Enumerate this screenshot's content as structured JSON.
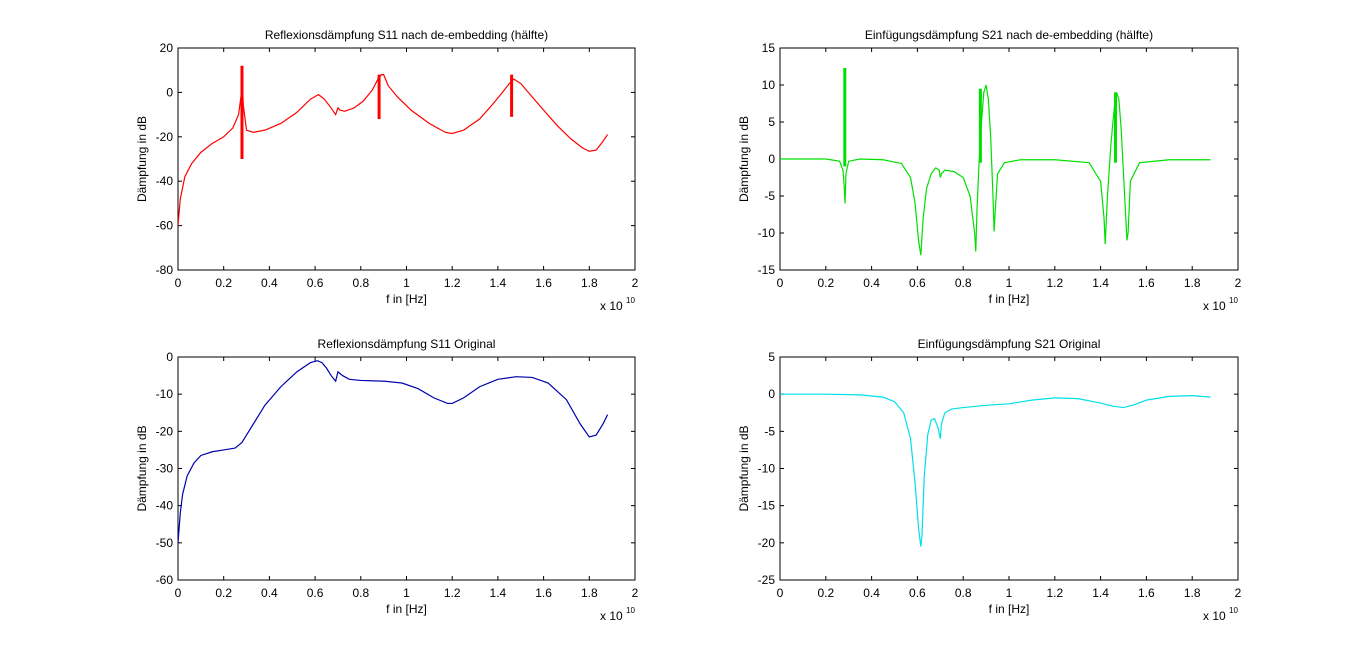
{
  "chart_data": [
    {
      "type": "line",
      "title": "Reflexionsdämpfung S11 nach de-embedding (hälfte)",
      "xlabel": "f in [Hz]",
      "ylabel": "Dämpfung in dB",
      "x_exponent_base": "x 10",
      "x_exponent_power": "10",
      "xlim": [
        0,
        2
      ],
      "ylim": [
        -80,
        20
      ],
      "xticks": [
        "0",
        "0.2",
        "0.4",
        "0.6",
        "0.8",
        "1",
        "1.2",
        "1.4",
        "1.6",
        "1.8",
        "2"
      ],
      "yticks": [
        "20",
        "0",
        "-20",
        "-40",
        "-60",
        "-80"
      ],
      "grid": false,
      "color": "#ff0000",
      "series": [
        {
          "x": [
            0.0,
            0.01,
            0.03,
            0.06,
            0.1,
            0.15,
            0.2,
            0.24,
            0.265,
            0.278,
            0.282,
            0.286,
            0.3,
            0.33,
            0.38,
            0.45,
            0.52,
            0.58,
            0.615,
            0.64,
            0.67,
            0.69,
            0.7,
            0.71,
            0.73,
            0.77,
            0.81,
            0.85,
            0.875,
            0.89,
            0.9,
            0.92,
            0.96,
            1.02,
            1.1,
            1.17,
            1.2,
            1.25,
            1.32,
            1.38,
            1.42,
            1.45,
            1.47,
            1.5,
            1.55,
            1.6,
            1.66,
            1.72,
            1.77,
            1.8,
            1.83,
            1.86,
            1.88
          ],
          "values": [
            -60,
            -48,
            -38,
            -32,
            -27,
            -23,
            -20,
            -16,
            -10,
            0,
            3,
            -6,
            -17,
            -18,
            -17,
            -14,
            -9,
            -3,
            -1,
            -3,
            -7,
            -10,
            -7,
            -8,
            -8.5,
            -7,
            -4,
            1,
            6,
            8,
            8,
            3,
            -2,
            -8,
            -14,
            -18,
            -18.5,
            -17,
            -12,
            -5,
            0,
            4,
            6,
            4,
            -2,
            -8,
            -15,
            -21,
            -25,
            -26.5,
            -26,
            -22,
            -19
          ]
        }
      ],
      "spikes": [
        {
          "x": 0.28,
          "y_top": 12,
          "y_bottom": -30
        },
        {
          "x": 0.88,
          "y_top": 8,
          "y_bottom": -12
        },
        {
          "x": 1.46,
          "y_top": 8,
          "y_bottom": -11
        }
      ]
    },
    {
      "type": "line",
      "title": "Einfügungsdämpfung S21 nach de-embedding (hälfte)",
      "xlabel": "f in [Hz]",
      "ylabel": "Dämpfung in dB",
      "x_exponent_base": "x 10",
      "x_exponent_power": "10",
      "xlim": [
        0,
        2
      ],
      "ylim": [
        -15,
        15
      ],
      "xticks": [
        "0",
        "0.2",
        "0.4",
        "0.6",
        "0.8",
        "1",
        "1.2",
        "1.4",
        "1.6",
        "1.8",
        "2"
      ],
      "yticks": [
        "15",
        "10",
        "5",
        "0",
        "-5",
        "-10",
        "-15"
      ],
      "grid": false,
      "color": "#00e000",
      "series": [
        {
          "x": [
            0.0,
            0.2,
            0.26,
            0.275,
            0.28,
            0.284,
            0.288,
            0.3,
            0.35,
            0.45,
            0.53,
            0.57,
            0.59,
            0.605,
            0.615,
            0.625,
            0.64,
            0.66,
            0.68,
            0.695,
            0.7,
            0.705,
            0.72,
            0.76,
            0.8,
            0.83,
            0.85,
            0.855,
            0.86,
            0.87,
            0.88,
            0.89,
            0.9,
            0.91,
            0.92,
            0.93,
            0.935,
            0.94,
            0.95,
            0.98,
            1.05,
            1.2,
            1.35,
            1.4,
            1.415,
            1.42,
            1.43,
            1.445,
            1.46,
            1.47,
            1.48,
            1.49,
            1.5,
            1.51,
            1.515,
            1.52,
            1.53,
            1.57,
            1.7,
            1.88
          ],
          "values": [
            0,
            0,
            -0.3,
            -1.5,
            -3.5,
            -6,
            -2,
            -0.3,
            0,
            -0.1,
            -0.6,
            -2.5,
            -6,
            -11,
            -13,
            -8,
            -4,
            -2,
            -1.2,
            -1.5,
            -2.5,
            -2,
            -1.5,
            -1.7,
            -2.5,
            -5,
            -10,
            -12.5,
            -7,
            0,
            5,
            9,
            10,
            8,
            3,
            -5,
            -9.8,
            -7,
            -2,
            -0.5,
            -0.1,
            -0.1,
            -0.5,
            -3,
            -8,
            -11.5,
            -5,
            2,
            7,
            9,
            8,
            4,
            -2,
            -8,
            -11,
            -10,
            -3,
            -0.5,
            -0.1,
            -0.1
          ]
        }
      ],
      "spikes": [
        {
          "x": 0.283,
          "y_top": 12.3,
          "y_bottom": -1
        },
        {
          "x": 0.875,
          "y_top": 9.5,
          "y_bottom": -0.5
        },
        {
          "x": 1.465,
          "y_top": 9,
          "y_bottom": -0.5
        }
      ]
    },
    {
      "type": "line",
      "title": "Reflexionsdämpfung S11 Original",
      "xlabel": "f in [Hz]",
      "ylabel": "Dämpfung in dB",
      "x_exponent_base": "x 10",
      "x_exponent_power": "10",
      "xlim": [
        0,
        2
      ],
      "ylim": [
        -60,
        0
      ],
      "xticks": [
        "0",
        "0.2",
        "0.4",
        "0.6",
        "0.8",
        "1",
        "1.2",
        "1.4",
        "1.6",
        "1.8",
        "2"
      ],
      "yticks": [
        "0",
        "-10",
        "-20",
        "-30",
        "-40",
        "-50",
        "-60"
      ],
      "grid": false,
      "color": "#0000b0",
      "series": [
        {
          "x": [
            0.0,
            0.01,
            0.02,
            0.04,
            0.07,
            0.1,
            0.15,
            0.2,
            0.25,
            0.28,
            0.32,
            0.38,
            0.45,
            0.52,
            0.58,
            0.61,
            0.63,
            0.65,
            0.67,
            0.69,
            0.7,
            0.72,
            0.75,
            0.8,
            0.9,
            0.98,
            1.05,
            1.12,
            1.18,
            1.2,
            1.25,
            1.32,
            1.4,
            1.48,
            1.55,
            1.62,
            1.7,
            1.76,
            1.8,
            1.83,
            1.86,
            1.88
          ],
          "values": [
            -50,
            -42,
            -37,
            -32,
            -28.5,
            -26.5,
            -25.5,
            -25,
            -24.5,
            -23,
            -19,
            -13,
            -8,
            -4,
            -1.5,
            -1,
            -1.5,
            -3,
            -5,
            -6.5,
            -4,
            -5,
            -6,
            -6.3,
            -6.5,
            -7,
            -8.5,
            -11,
            -12.5,
            -12.5,
            -11,
            -8,
            -6,
            -5.3,
            -5.5,
            -7,
            -11.5,
            -18,
            -21.5,
            -21,
            -18,
            -15.5
          ]
        }
      ]
    },
    {
      "type": "line",
      "title": "Einfügungsdämpfung S21 Original",
      "xlabel": "f in [Hz]",
      "ylabel": "Dämpfung in dB",
      "x_exponent_base": "x 10",
      "x_exponent_power": "10",
      "xlim": [
        0,
        2
      ],
      "ylim": [
        -25,
        5
      ],
      "xticks": [
        "0",
        "0.2",
        "0.4",
        "0.6",
        "0.8",
        "1",
        "1.2",
        "1.4",
        "1.6",
        "1.8",
        "2"
      ],
      "yticks": [
        "5",
        "0",
        "-5",
        "-10",
        "-15",
        "-20",
        "-25"
      ],
      "grid": false,
      "color": "#00e0e8",
      "series": [
        {
          "x": [
            0.0,
            0.2,
            0.35,
            0.45,
            0.5,
            0.54,
            0.57,
            0.59,
            0.605,
            0.615,
            0.62,
            0.63,
            0.645,
            0.66,
            0.675,
            0.69,
            0.7,
            0.705,
            0.72,
            0.75,
            0.8,
            0.9,
            1.0,
            1.1,
            1.2,
            1.3,
            1.4,
            1.45,
            1.5,
            1.55,
            1.6,
            1.7,
            1.8,
            1.88
          ],
          "values": [
            0,
            0,
            -0.1,
            -0.4,
            -1,
            -2.5,
            -6,
            -12,
            -18,
            -20.5,
            -19,
            -11,
            -5.5,
            -3.5,
            -3.3,
            -4.5,
            -6,
            -4,
            -2.5,
            -2,
            -1.8,
            -1.5,
            -1.3,
            -0.8,
            -0.5,
            -0.6,
            -1.2,
            -1.6,
            -1.8,
            -1.4,
            -0.8,
            -0.3,
            -0.2,
            -0.4
          ]
        }
      ]
    }
  ]
}
